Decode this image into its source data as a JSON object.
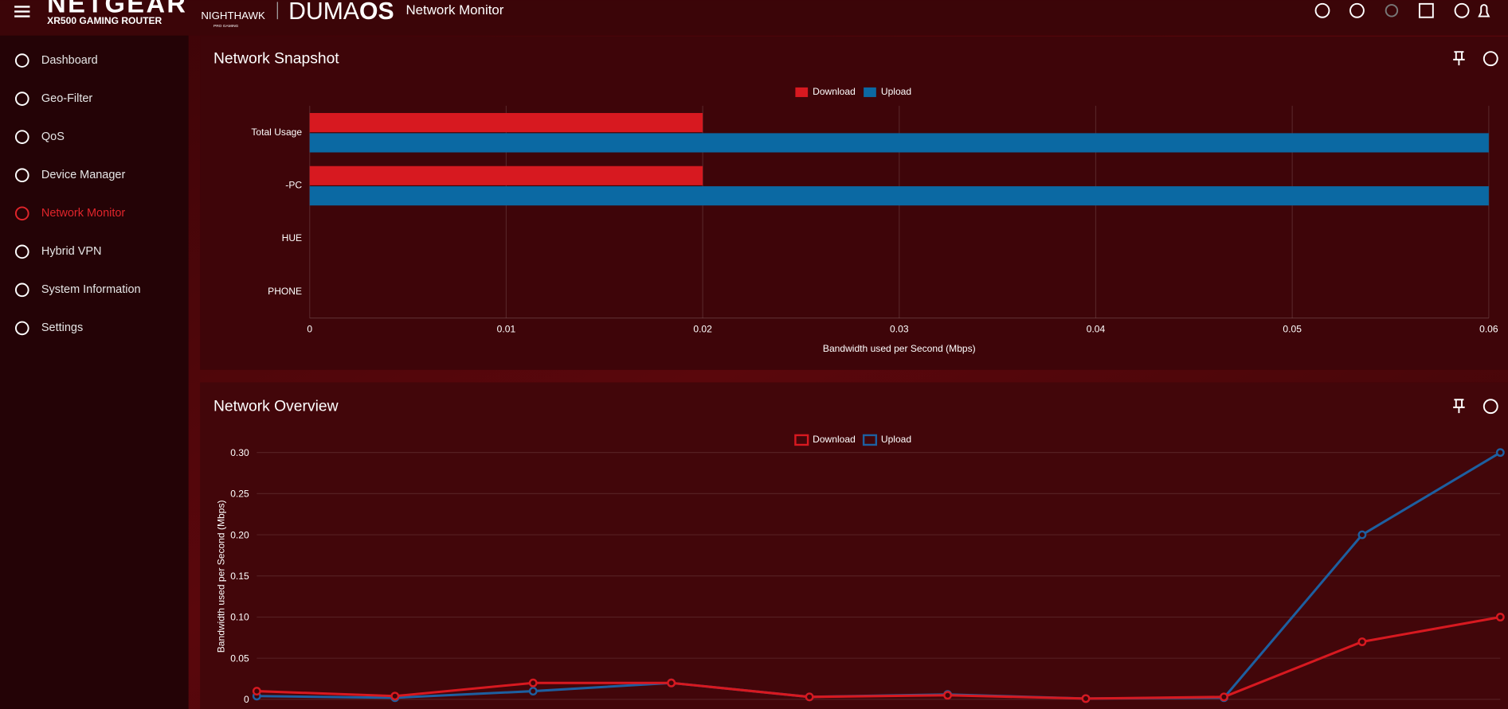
{
  "header": {
    "brand": "NETGEAR",
    "model": "XR500 GAMING ROUTER",
    "subbrand": "NIGHTHAWK",
    "subbrand_tag": "PRO GAMING",
    "os_light": "DUMA",
    "os_bold": "OS",
    "page_title": "Network Monitor"
  },
  "nav": {
    "items": [
      "Dashboard",
      "Geo-Filter",
      "QoS",
      "Device Manager",
      "Network Monitor",
      "Hybrid VPN",
      "System Information",
      "Settings"
    ],
    "active": 4
  },
  "chart_data": [
    {
      "type": "hbar",
      "title": "Network Snapshot",
      "categories": [
        "Total Usage",
        "-PC",
        "HUE",
        "PHONE"
      ],
      "series": [
        {
          "name": "Download",
          "color": "#d71920",
          "values": [
            0.02,
            0.02,
            0,
            0
          ]
        },
        {
          "name": "Upload",
          "color": "#0b69a3",
          "values": [
            0.06,
            0.06,
            0,
            0
          ]
        }
      ],
      "xlim": [
        0,
        0.06
      ],
      "xticks": [
        0,
        0.01,
        0.02,
        0.03,
        0.04,
        0.05,
        0.06
      ],
      "xlabel": "Bandwidth used per Second (Mbps)",
      "grid": true
    },
    {
      "type": "line",
      "title": "Network Overview",
      "categories": [
        null,
        null,
        null,
        null,
        null,
        null,
        null,
        null,
        null,
        null
      ],
      "series": [
        {
          "name": "Download",
          "color": "#d71920",
          "values": [
            0.01,
            0.004,
            0.02,
            0.02,
            0.003,
            0.005,
            0.001,
            0.003,
            0.07,
            0.1
          ]
        },
        {
          "name": "Upload",
          "color": "#1d5fa0",
          "values": [
            0.004,
            0.002,
            0.01,
            0.02,
            0.003,
            0.006,
            0.001,
            0.002,
            0.2,
            0.3
          ]
        }
      ],
      "ylim": [
        0,
        0.3
      ],
      "yticks": [
        0,
        0.05,
        {
          "value": 0.1,
          "label": "0.10"
        },
        0.15,
        {
          "value": 0.2,
          "label": "0.20"
        },
        0.25,
        {
          "value": 0.3,
          "label": "0.30"
        }
      ],
      "ylabel": "Bandwidth used per Second (Mbps)",
      "grid": true
    }
  ]
}
